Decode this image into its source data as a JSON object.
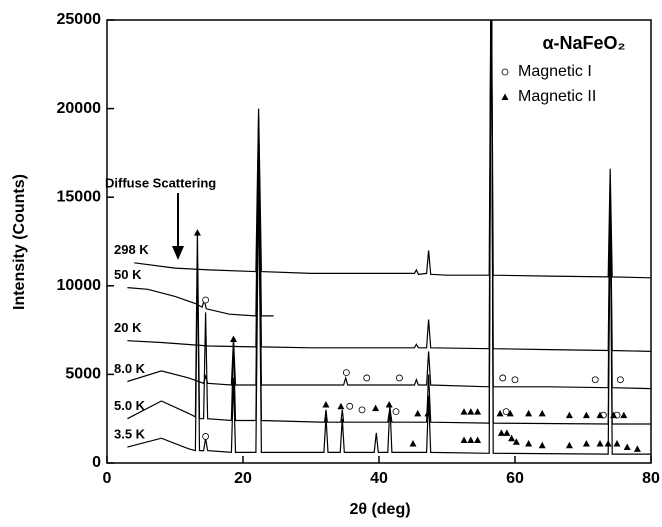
{
  "chart_data": {
    "type": "line",
    "title": "α-NaFeO₂",
    "x_label": "2θ (deg)",
    "y_label": "Intensity (Counts)",
    "annotation": "Diffuse Scattering",
    "xlim": [
      0,
      80
    ],
    "xticks": [
      0,
      20,
      40,
      60,
      80
    ],
    "ylim": [
      0,
      25000
    ],
    "yticks": [
      0,
      5000,
      10000,
      15000,
      20000,
      25000
    ],
    "series": [
      {
        "name": "298 K",
        "color": "#000000",
        "x": [
          4,
          10,
          15,
          21.9,
          22.3,
          22.7,
          30,
          40,
          45.2,
          45.5,
          45.8,
          47,
          47.3,
          47.6,
          50,
          56.2,
          56.5,
          56.8,
          65,
          73.7,
          74,
          74.3,
          80
        ],
        "values": [
          11300,
          11000,
          10900,
          10800,
          20000,
          10800,
          10700,
          10700,
          10700,
          10900,
          10650,
          10700,
          12000,
          10650,
          10600,
          10600,
          30000,
          10600,
          10550,
          10500,
          16600,
          10500,
          10450
        ]
      },
      {
        "name": "50 K",
        "color": "#000000",
        "x": [
          3,
          6,
          10,
          13,
          14,
          14.3,
          14.6,
          18,
          21.9,
          22.3,
          22.7,
          24.5
        ],
        "values": [
          9900,
          9800,
          9400,
          9000,
          8800,
          9200,
          8700,
          8400,
          8300,
          19500,
          8300,
          8300
        ]
      },
      {
        "name": "20 K",
        "color": "#000000",
        "x": [
          3,
          8,
          15,
          21.9,
          22.3,
          22.7,
          30,
          45.2,
          45.5,
          45.8,
          47,
          47.3,
          47.6,
          56.2,
          56.5,
          56.8,
          65,
          73.7,
          74,
          74.3,
          80
        ],
        "values": [
          6900,
          6800,
          6600,
          6550,
          18800,
          6550,
          6500,
          6500,
          6700,
          6500,
          6500,
          8100,
          6500,
          6450,
          30000,
          6450,
          6400,
          6350,
          16000,
          6350,
          6300
        ]
      },
      {
        "name": "8.0 K",
        "color": "#000000",
        "x": [
          3,
          8,
          12,
          14.2,
          14.5,
          14.8,
          18.3,
          18.6,
          18.9,
          21.9,
          22.3,
          22.7,
          30,
          34.8,
          35.1,
          35.4,
          45.2,
          45.5,
          45.8,
          47,
          47.3,
          47.6,
          56.2,
          56.5,
          56.8,
          65,
          73.7,
          74,
          74.3,
          80
        ],
        "values": [
          4600,
          5200,
          4800,
          4500,
          4900,
          4500,
          4400,
          7000,
          4400,
          4400,
          18000,
          4400,
          4400,
          4400,
          4800,
          4400,
          4400,
          4700,
          4400,
          4400,
          6300,
          4400,
          4300,
          30000,
          4300,
          4300,
          4250,
          16000,
          4250,
          4200
        ]
      },
      {
        "name": "5.0 K",
        "color": "#000000",
        "x": [
          3,
          8,
          12,
          13,
          13.3,
          13.6,
          14.2,
          14.5,
          14.8,
          18.3,
          18.6,
          18.9,
          21.9,
          22.3,
          22.7,
          32,
          32.2,
          32.4,
          34.4,
          34.6,
          34.8,
          41.3,
          41.6,
          41.9,
          47,
          47.3,
          47.6,
          56.2,
          56.5,
          56.8,
          73.7,
          74,
          74.3,
          80
        ],
        "values": [
          2500,
          3500,
          2800,
          2600,
          13000,
          2500,
          2500,
          8500,
          2500,
          2400,
          6800,
          2400,
          2400,
          17000,
          2400,
          2300,
          3000,
          2300,
          2300,
          3000,
          2300,
          2300,
          3100,
          2300,
          2300,
          5000,
          2300,
          2250,
          30000,
          2250,
          2200,
          16000,
          2200,
          2200
        ]
      },
      {
        "name": "3.5 K",
        "color": "#000000",
        "x": [
          3,
          8,
          12,
          13,
          13.3,
          13.6,
          14.2,
          14.5,
          14.8,
          18.3,
          18.6,
          18.9,
          21.9,
          22.3,
          22.7,
          31.9,
          32.2,
          32.5,
          34.3,
          34.6,
          34.9,
          39.3,
          39.6,
          39.9,
          41.3,
          41.6,
          41.9,
          47,
          47.3,
          47.6,
          56.2,
          56.5,
          56.8,
          73.7,
          74,
          74.3,
          80
        ],
        "values": [
          900,
          1400,
          800,
          700,
          11500,
          700,
          700,
          1400,
          700,
          600,
          4800,
          600,
          600,
          16000,
          600,
          600,
          2600,
          600,
          600,
          2500,
          600,
          600,
          1700,
          600,
          600,
          3300,
          600,
          600,
          3800,
          600,
          550,
          30000,
          550,
          500,
          15000,
          500,
          500
        ]
      }
    ],
    "markers": [
      {
        "name": "Magnetic I",
        "marker": "circle",
        "x": [
          14.5,
          35.2,
          38.2,
          43,
          58.2,
          60,
          71.8,
          75.5,
          35.7,
          37.5,
          42.5,
          58.7,
          73,
          75,
          14.5
        ],
        "values": [
          9200,
          5100,
          4800,
          4800,
          4800,
          4700,
          4700,
          4700,
          3200,
          3000,
          2900,
          2900,
          2700,
          2700,
          1500
        ]
      },
      {
        "name": "Magnetic II",
        "marker": "triangle",
        "x": [
          13.3,
          18.6,
          32.2,
          34.4,
          39.5,
          41.5,
          45.7,
          47.2,
          52.5,
          53.5,
          54.5,
          57.8,
          59.3,
          62,
          64,
          68,
          70.5,
          72.5,
          74.5,
          76,
          45,
          52.5,
          53.5,
          54.5,
          58,
          58.8,
          59.5,
          60.2,
          62,
          64,
          68,
          70.5,
          72.5,
          73.7,
          75,
          76.5,
          78
        ],
        "values": [
          13000,
          7000,
          3300,
          3200,
          3100,
          3300,
          2800,
          2800,
          2900,
          2900,
          2900,
          2800,
          2800,
          2800,
          2800,
          2700,
          2700,
          2700,
          2700,
          2700,
          1100,
          1300,
          1300,
          1300,
          1700,
          1700,
          1400,
          1200,
          1100,
          1000,
          1000,
          1100,
          1100,
          1100,
          1100,
          900,
          800
        ]
      }
    ]
  }
}
